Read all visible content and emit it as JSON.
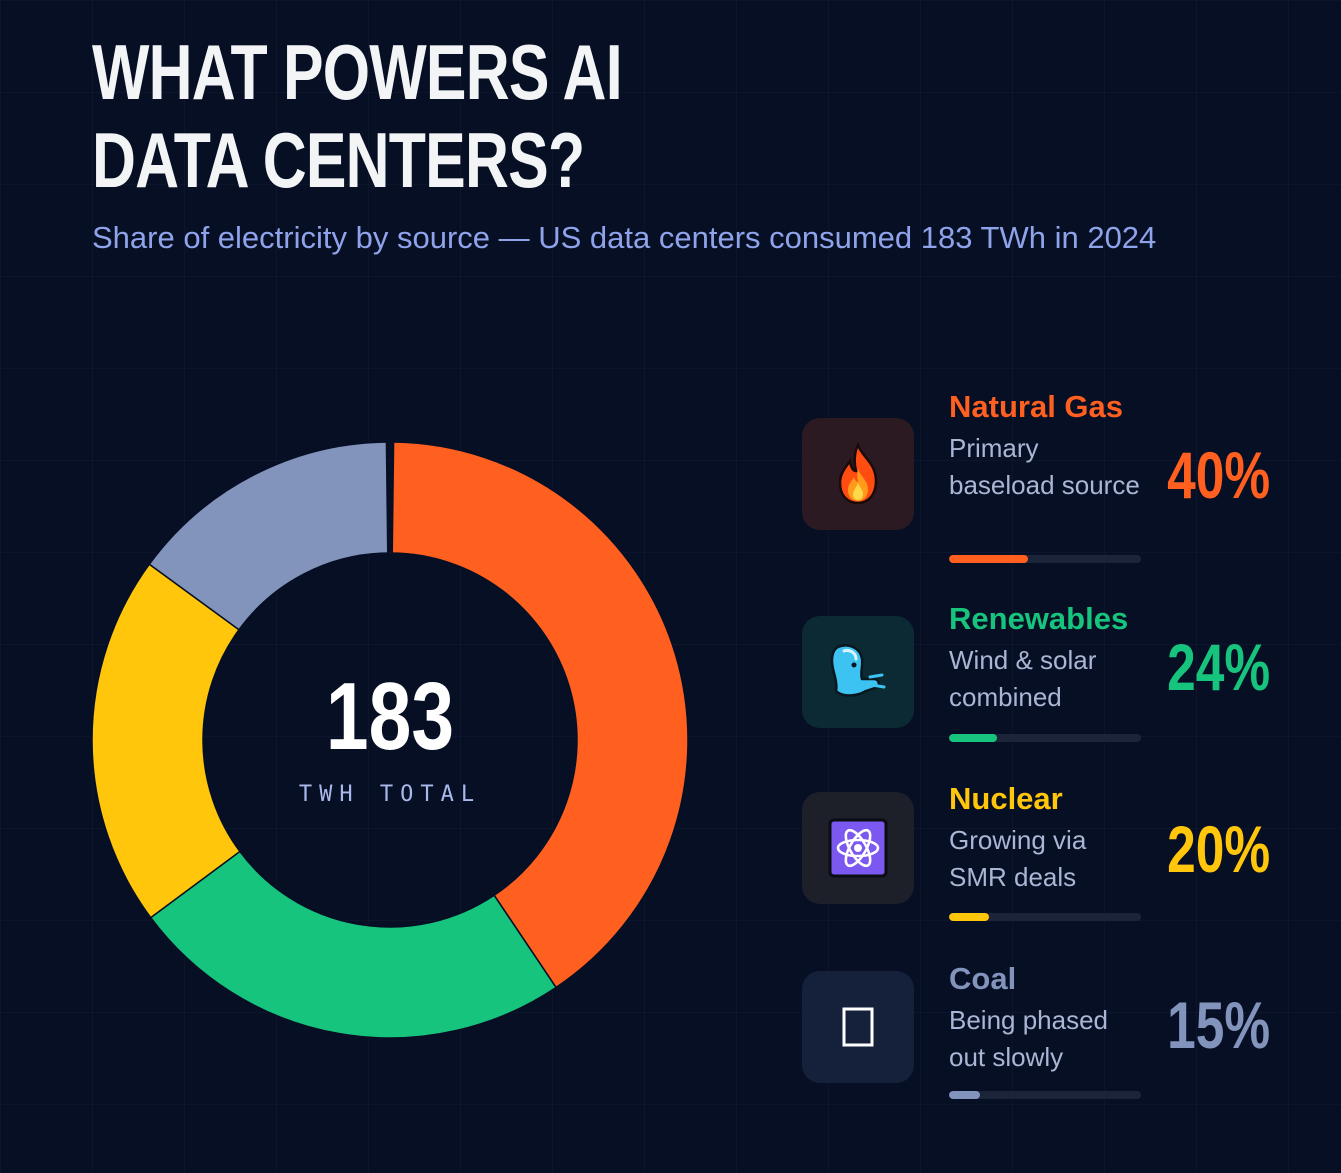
{
  "title_line1": "WHAT POWERS AI",
  "title_line2": "DATA CENTERS?",
  "subtitle": "Share of electricity by source — US data centers consumed 183 TWh in 2024",
  "center": {
    "value": "183",
    "label": "TWH TOTAL"
  },
  "colors": {
    "natural_gas": "#ff5f1f",
    "renewables": "#17c47d",
    "nuclear": "#ffc60b",
    "coal": "#8293bc"
  },
  "chart_data": {
    "type": "pie",
    "variant": "donut",
    "categories": [
      "Natural Gas",
      "Renewables",
      "Nuclear",
      "Coal"
    ],
    "values": [
      40,
      24,
      20,
      15
    ],
    "unit": "%",
    "legend_placement": "right"
  },
  "legend": [
    {
      "key": "natural_gas",
      "name": "Natural Gas",
      "desc": "Primary baseload source",
      "pct": "40%",
      "value": 40,
      "icon": "fire-icon",
      "bar_fraction": 0.41
    },
    {
      "key": "renewables",
      "name": "Renewables",
      "desc": "Wind & solar combined",
      "pct": "24%",
      "value": 24,
      "icon": "wind-icon",
      "bar_fraction": 0.25
    },
    {
      "key": "nuclear",
      "name": "Nuclear",
      "desc": "Growing via SMR deals",
      "pct": "20%",
      "value": 20,
      "icon": "atom-icon",
      "bar_fraction": 0.21
    },
    {
      "key": "coal",
      "name": "Coal",
      "desc": "Being phased out slowly",
      "pct": "15%",
      "value": 15,
      "icon": "coal-icon",
      "bar_fraction": 0.16
    }
  ]
}
